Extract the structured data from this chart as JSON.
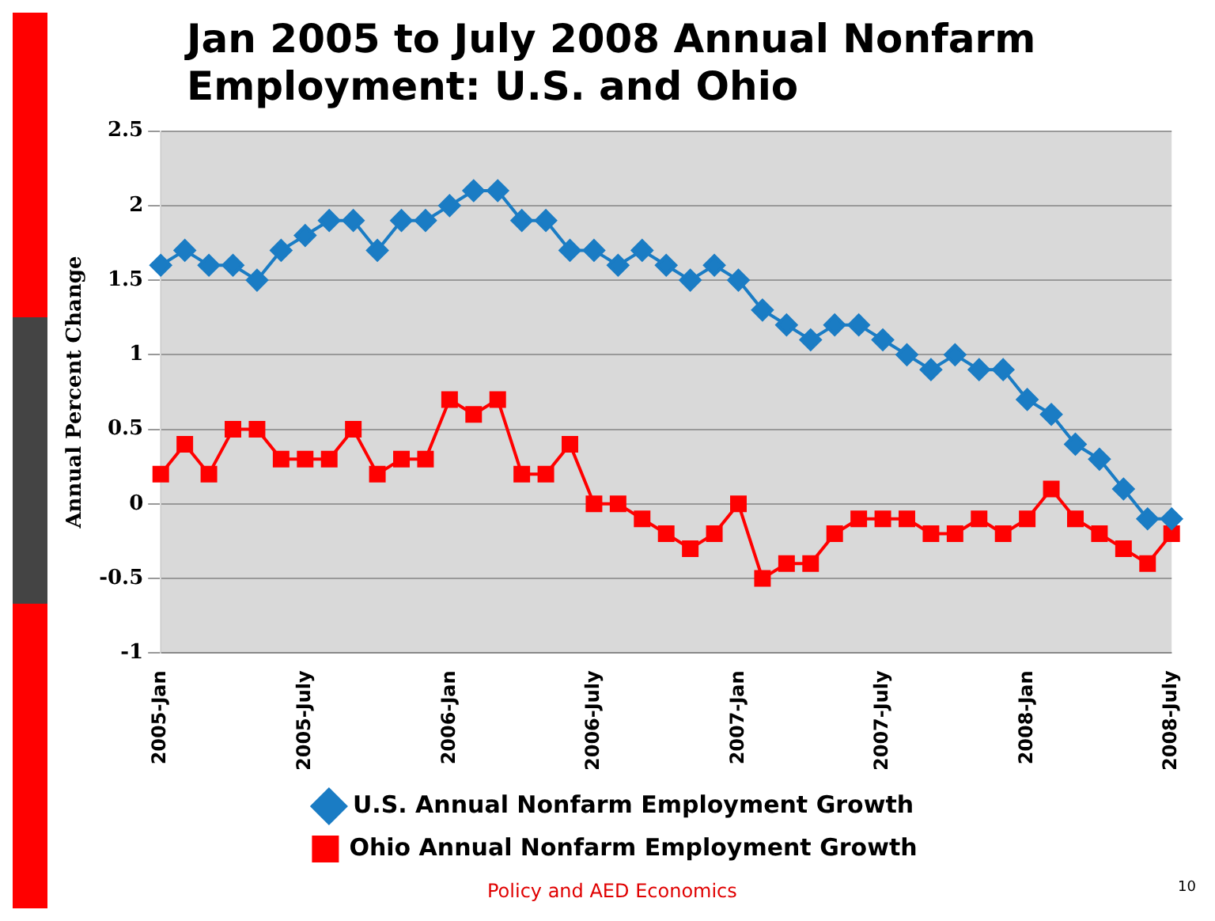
{
  "chart_data": {
    "type": "line",
    "title": "Jan 2005 to July 2008 Annual Nonfarm Employment: U.S. and Ohio",
    "ylabel": "Annual Percent Change",
    "categories": [
      "2005-Jan",
      null,
      null,
      null,
      null,
      null,
      "2005-July",
      null,
      null,
      null,
      null,
      null,
      "2006-Jan",
      null,
      null,
      null,
      null,
      null,
      "2006-July",
      null,
      null,
      null,
      null,
      null,
      "2007-Jan",
      null,
      null,
      null,
      null,
      null,
      "2007-July",
      null,
      null,
      null,
      null,
      null,
      "2008-Jan",
      null,
      null,
      null,
      null,
      null,
      "2008-July"
    ],
    "series": [
      {
        "name": "U.S. Annual Nonfarm Employment Growth",
        "color": "#1a7cc4",
        "marker": "diamond",
        "values": [
          1.6,
          1.7,
          1.6,
          1.6,
          1.5,
          1.7,
          1.8,
          1.9,
          1.9,
          1.7,
          1.9,
          1.9,
          2.0,
          2.1,
          2.1,
          1.9,
          1.9,
          1.7,
          1.7,
          1.6,
          1.7,
          1.6,
          1.5,
          1.6,
          1.5,
          1.3,
          1.2,
          1.1,
          1.2,
          1.2,
          1.1,
          1.0,
          0.9,
          1.0,
          0.9,
          0.9,
          0.7,
          0.6,
          0.4,
          0.3,
          0.1,
          -0.1,
          -0.1
        ]
      },
      {
        "name": "Ohio Annual Nonfarm Employment Growth",
        "color": "#ff0000",
        "marker": "square",
        "values": [
          0.2,
          0.4,
          0.2,
          0.5,
          0.5,
          0.3,
          0.3,
          0.3,
          0.5,
          0.2,
          0.3,
          0.3,
          0.7,
          0.6,
          0.7,
          0.2,
          0.2,
          0.4,
          0,
          0,
          -0.1,
          -0.2,
          -0.3,
          -0.2,
          0,
          -0.5,
          -0.4,
          -0.4,
          -0.2,
          -0.1,
          -0.1,
          -0.1,
          -0.2,
          -0.2,
          -0.1,
          -0.2,
          -0.1,
          0.1,
          -0.1,
          -0.2,
          -0.3,
          -0.4,
          -0.2
        ]
      }
    ],
    "ylim": [
      -1,
      2.5
    ],
    "yticks": [
      -1,
      -0.5,
      0,
      0.5,
      1,
      1.5,
      2,
      2.5
    ],
    "grid": "y",
    "legend": "bottom",
    "line_style": "solid",
    "annotations": [
      "Policy and AED Economics",
      "10"
    ]
  }
}
